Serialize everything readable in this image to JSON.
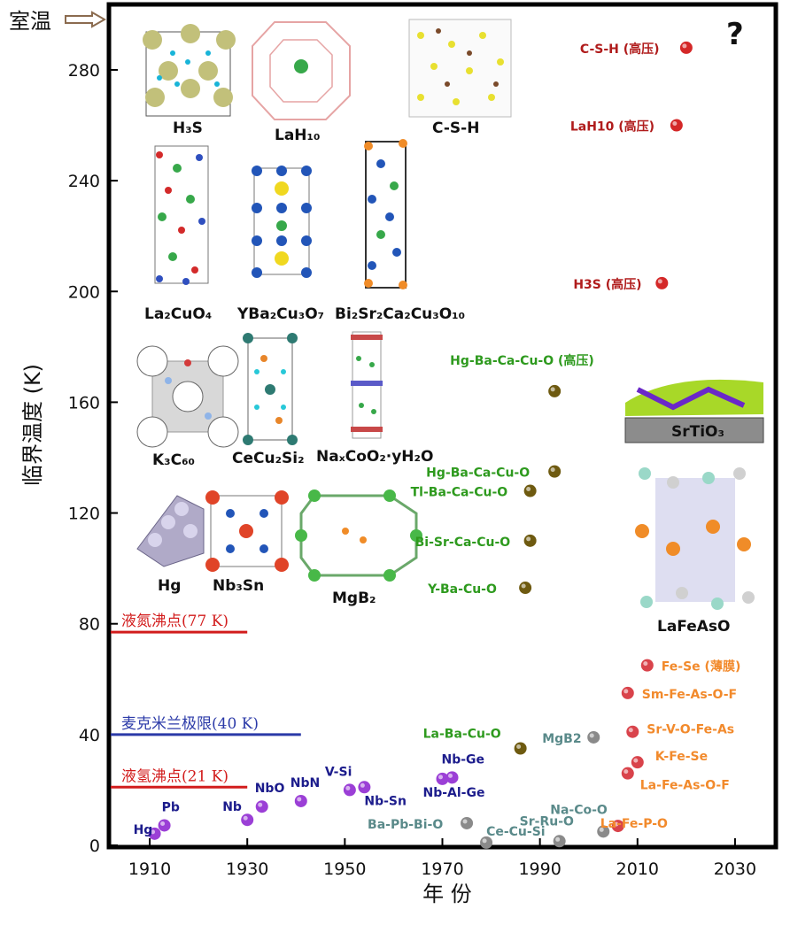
{
  "chart_data": {
    "type": "scatter",
    "xlabel": "年 份",
    "ylabel": "临界温度 (K)",
    "xlim": [
      1902,
      2038
    ],
    "ylim": [
      0,
      303
    ],
    "x_ticks": [
      1910,
      1930,
      1950,
      1970,
      1990,
      2010,
      2030
    ],
    "y_ticks": [
      0,
      40,
      80,
      120,
      160,
      200,
      240,
      280
    ],
    "top_marker": "室温",
    "colors": {
      "element": "#9b3fd6",
      "conventional": "#1c1c8c",
      "oxide_label": "#8a8a8a",
      "cuprate_label": "#2e9a1e",
      "cuprate_point": "#6e5a10",
      "iron": "#f28a2c",
      "iron_point": "#d9434b",
      "high_pressure": "#b01c1c",
      "ln2": "#d21c1c",
      "mcmillan": "#2b3aa8"
    },
    "reference_lines": [
      {
        "label": "液氮沸点(77 K)",
        "y": 77,
        "x_start": 1902,
        "x_end": 1930,
        "color": "#d21c1c"
      },
      {
        "label": "麦克米兰极限(40 K)",
        "y": 40,
        "x_start": 1902,
        "x_end": 1941,
        "color": "#2b3aa8"
      },
      {
        "label": "液氢沸点(21 K)",
        "y": 21,
        "x_start": 1902,
        "x_end": 1930,
        "color": "#d21c1c"
      }
    ],
    "points": [
      {
        "label": "Hg",
        "x": 1911,
        "y": 4.2,
        "color": "#9b3fd6",
        "label_color": "#1c1c8c"
      },
      {
        "label": "Pb",
        "x": 1913,
        "y": 7.2,
        "color": "#9b3fd6",
        "label_color": "#1c1c8c"
      },
      {
        "label": "Nb",
        "x": 1930,
        "y": 9.2,
        "color": "#9b3fd6",
        "label_color": "#1c1c8c"
      },
      {
        "label": "NbO",
        "x": 1933,
        "y": 14,
        "color": "#9b3fd6",
        "label_color": "#1c1c8c"
      },
      {
        "label": "NbN",
        "x": 1941,
        "y": 16,
        "color": "#9b3fd6",
        "label_color": "#1c1c8c"
      },
      {
        "label": "V-Si",
        "x": 1951,
        "y": 20,
        "color": "#9b3fd6",
        "label_color": "#1c1c8c"
      },
      {
        "label": "Nb-Sn",
        "x": 1954,
        "y": 21,
        "color": "#9b3fd6",
        "label_color": "#1c1c8c"
      },
      {
        "label": "Nb-Al-Ge",
        "x": 1970,
        "y": 24,
        "color": "#9b3fd6",
        "label_color": "#1c1c8c"
      },
      {
        "label": "Nb-Ge",
        "x": 1972,
        "y": 24.5,
        "color": "#9b3fd6",
        "label_color": "#1c1c8c"
      },
      {
        "label": "Ba-Pb-Bi-O",
        "x": 1975,
        "y": 8,
        "color": "#8a8a8a",
        "label_color": "#5a8a8a"
      },
      {
        "label": "Ce-Cu-Si",
        "x": 1979,
        "y": 1,
        "color": "#8a8a8a",
        "label_color": "#5a8a8a"
      },
      {
        "label": "La-Ba-Cu-O",
        "x": 1986,
        "y": 35,
        "color": "#6e5a10",
        "label_color": "#2e9a1e"
      },
      {
        "label": "Y-Ba-Cu-O",
        "x": 1987,
        "y": 93,
        "color": "#6e5a10",
        "label_color": "#2e9a1e"
      },
      {
        "label": "Bi-Sr-Ca-Cu-O",
        "x": 1988,
        "y": 110,
        "color": "#6e5a10",
        "label_color": "#2e9a1e"
      },
      {
        "label": "Tl-Ba-Ca-Cu-O",
        "x": 1988,
        "y": 128,
        "color": "#6e5a10",
        "label_color": "#2e9a1e"
      },
      {
        "label": "Hg-Ba-Ca-Cu-O",
        "x": 1993,
        "y": 135,
        "color": "#6e5a10",
        "label_color": "#2e9a1e"
      },
      {
        "label": "Hg-Ba-Ca-Cu-O (高压)",
        "x": 1993,
        "y": 164,
        "color": "#6e5a10",
        "label_color": "#2e9a1e"
      },
      {
        "label": "Sr-Ru-O",
        "x": 1994,
        "y": 1.5,
        "color": "#8a8a8a",
        "label_color": "#5a8a8a"
      },
      {
        "label": "MgB2",
        "x": 2001,
        "y": 39,
        "color": "#8a8a8a",
        "label_color": "#5a8a8a"
      },
      {
        "label": "Na-Co-O",
        "x": 2003,
        "y": 5,
        "color": "#8a8a8a",
        "label_color": "#5a8a8a"
      },
      {
        "label": "La-Fe-P-O",
        "x": 2006,
        "y": 7,
        "color": "#d9434b",
        "label_color": "#f28a2c"
      },
      {
        "label": "La-Fe-As-O-F",
        "x": 2008,
        "y": 26,
        "color": "#d9434b",
        "label_color": "#f28a2c"
      },
      {
        "label": "Sm-Fe-As-O-F",
        "x": 2008,
        "y": 55,
        "color": "#d9434b",
        "label_color": "#f28a2c"
      },
      {
        "label": "K-Fe-Se",
        "x": 2010,
        "y": 30,
        "color": "#d9434b",
        "label_color": "#f28a2c"
      },
      {
        "label": "Sr-V-O-Fe-As",
        "x": 2009,
        "y": 41,
        "color": "#d9434b",
        "label_color": "#f28a2c"
      },
      {
        "label": "Fe-Se (薄膜)",
        "x": 2012,
        "y": 65,
        "color": "#d9434b",
        "label_color": "#f28a2c"
      },
      {
        "label": "H3S (高压)",
        "x": 2015,
        "y": 203,
        "color": "#d42828",
        "label_color": "#b01c1c"
      },
      {
        "label": "LaH10 (高压)",
        "x": 2018,
        "y": 260,
        "color": "#d42828",
        "label_color": "#b01c1c"
      },
      {
        "label": "C-S-H (高压)",
        "x": 2020,
        "y": 288,
        "color": "#d42828",
        "label_color": "#b01c1c"
      }
    ],
    "structures": [
      {
        "name": "H₃S"
      },
      {
        "name": "LaH₁₀"
      },
      {
        "name": "C-S-H"
      },
      {
        "name": "La₂CuO₄"
      },
      {
        "name": "YBa₂Cu₃O₇"
      },
      {
        "name": "Bi₂Sr₂Ca₂Cu₃O₁₀"
      },
      {
        "name": "K₃C₆₀"
      },
      {
        "name": "CeCu₂Si₂"
      },
      {
        "name": "NaₓCoO₂·yH₂O"
      },
      {
        "name": "Hg"
      },
      {
        "name": "Nb₃Sn"
      },
      {
        "name": "MgB₂"
      },
      {
        "name": "SrTiO₃"
      },
      {
        "name": "LaFeAsO"
      }
    ],
    "annotation": "?",
    "grid": false
  }
}
